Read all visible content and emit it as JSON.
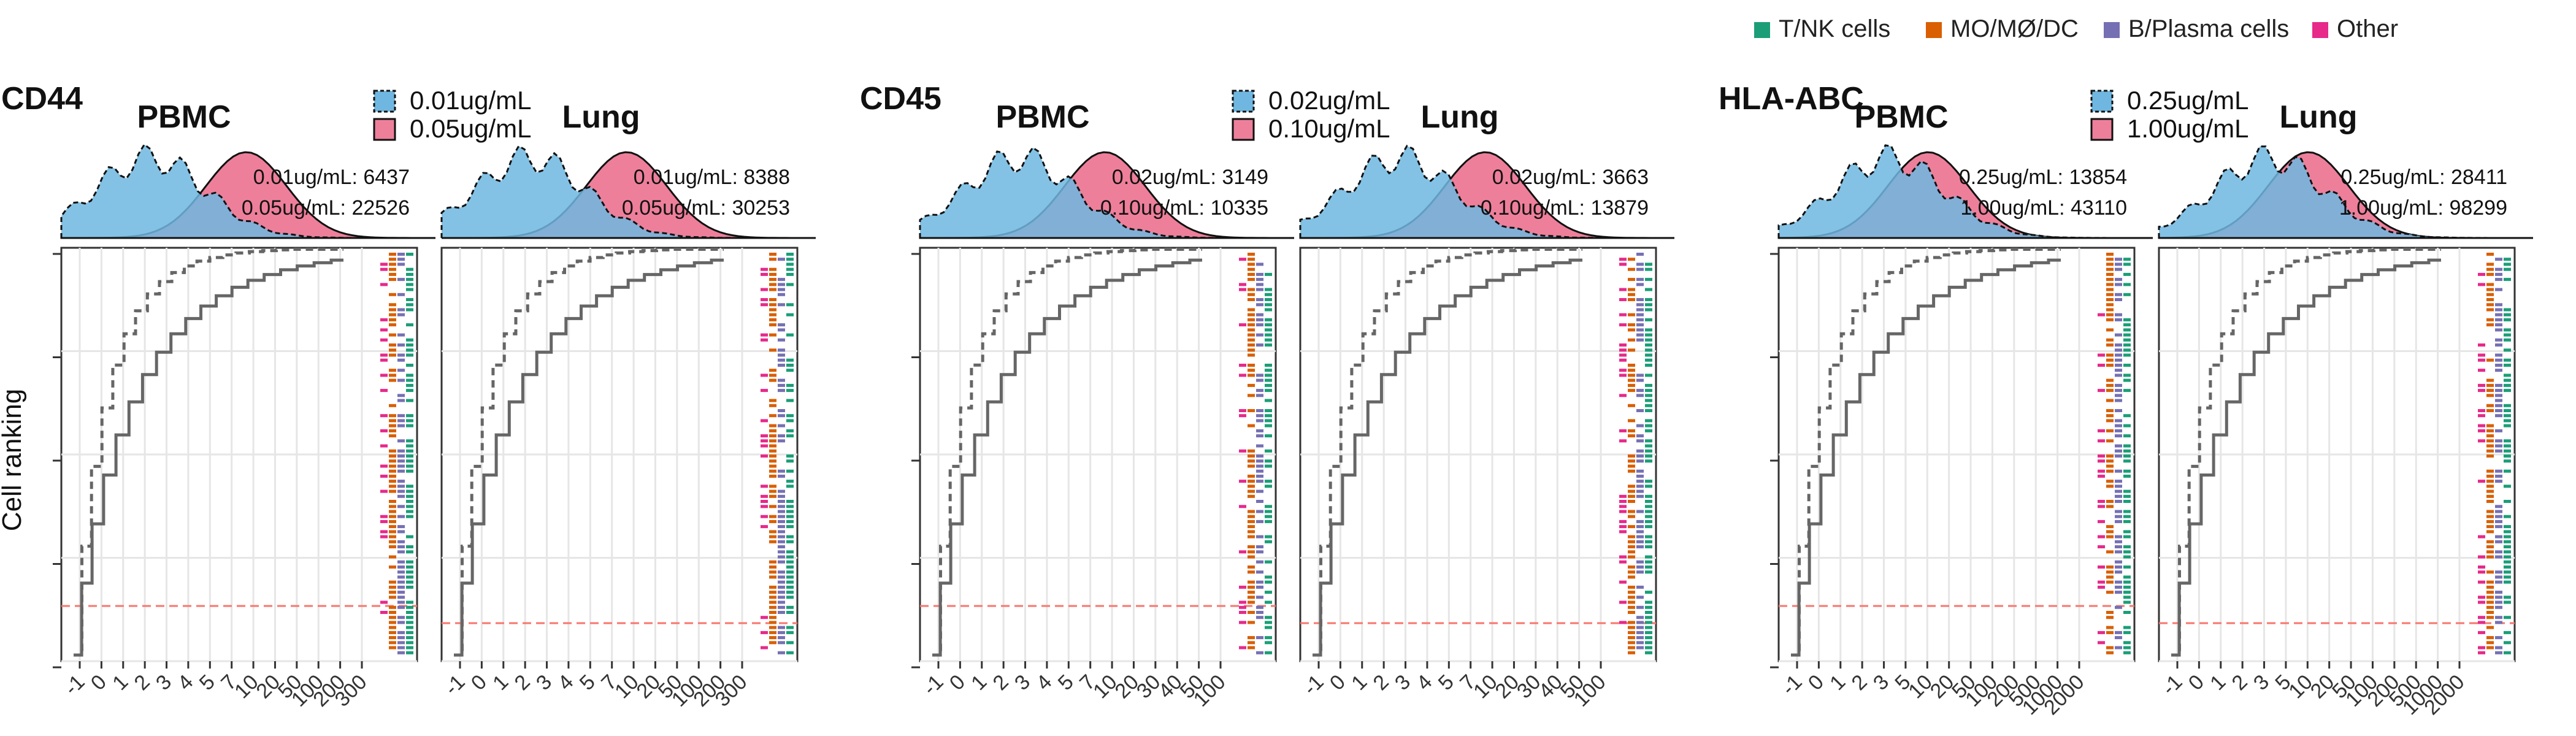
{
  "colors": {
    "tnk": "#1b9e77",
    "mo": "#d95f02",
    "bplasma": "#7570b3",
    "other": "#e7298a",
    "low_fill": "#6fb7e0",
    "high_fill": "#ee7f9a",
    "overlap_fill": "#6a6fb0",
    "cum_line": "#666666",
    "threshold": "#f8766d"
  },
  "legend": {
    "items": [
      {
        "label": "T/NK cells",
        "color": "#1b9e77"
      },
      {
        "label": "MO/MØ/DC",
        "color": "#d95f02"
      },
      {
        "label": "B/Plasma cells",
        "color": "#7570b3"
      },
      {
        "label": "Other",
        "color": "#e7298a"
      }
    ]
  },
  "y_axis_label": "Cell ranking",
  "chart_data": [
    {
      "type": "line",
      "marker": "CD44",
      "concentrations": [
        "0.01ug/mL",
        "0.05ug/mL"
      ],
      "panels": [
        {
          "tissue": "PBMC",
          "counts": {
            "low": "6437",
            "high": "22526"
          },
          "x_ticks": [
            "-1",
            "0",
            "1",
            "2",
            "3",
            "4",
            "5",
            "7",
            "10",
            "20",
            "50",
            "100",
            "200",
            "300"
          ],
          "x_range": [
            -1,
            300
          ]
        },
        {
          "tissue": "Lung",
          "counts": {
            "low": "8388",
            "high": "30253"
          },
          "x_ticks": [
            "-1",
            "0",
            "1",
            "2",
            "3",
            "4",
            "5",
            "7",
            "10",
            "20",
            "50",
            "100",
            "200",
            "300"
          ],
          "x_range": [
            -1,
            300
          ]
        }
      ]
    },
    {
      "type": "line",
      "marker": "CD45",
      "concentrations": [
        "0.02ug/mL",
        "0.10ug/mL"
      ],
      "panels": [
        {
          "tissue": "PBMC",
          "counts": {
            "low": "3149",
            "high": "10335"
          },
          "x_ticks": [
            "-1",
            "0",
            "1",
            "2",
            "3",
            "4",
            "5",
            "7",
            "10",
            "20",
            "30",
            "40",
            "50",
            "100"
          ],
          "x_range": [
            -1,
            100
          ]
        },
        {
          "tissue": "Lung",
          "counts": {
            "low": "3663",
            "high": "13879"
          },
          "x_ticks": [
            "-1",
            "0",
            "1",
            "2",
            "3",
            "4",
            "5",
            "7",
            "10",
            "20",
            "30",
            "40",
            "50",
            "100"
          ],
          "x_range": [
            -1,
            100
          ]
        }
      ]
    },
    {
      "type": "line",
      "marker": "HLA-ABC",
      "concentrations": [
        "0.25ug/mL",
        "1.00ug/mL"
      ],
      "panels": [
        {
          "tissue": "PBMC",
          "counts": {
            "low": "13854",
            "high": "43110"
          },
          "x_ticks": [
            "-1",
            "0",
            "1",
            "2",
            "3",
            "5",
            "10",
            "20",
            "50",
            "100",
            "200",
            "500",
            "1000",
            "2000"
          ],
          "x_range": [
            -1,
            2000
          ]
        },
        {
          "tissue": "Lung",
          "counts": {
            "low": "28411",
            "high": "98299"
          },
          "x_ticks": [
            "-1",
            "0",
            "1",
            "2",
            "3",
            "5",
            "10",
            "20",
            "50",
            "100",
            "200",
            "500",
            "1000",
            "2000"
          ],
          "x_range": [
            -1,
            2000
          ]
        }
      ]
    }
  ]
}
